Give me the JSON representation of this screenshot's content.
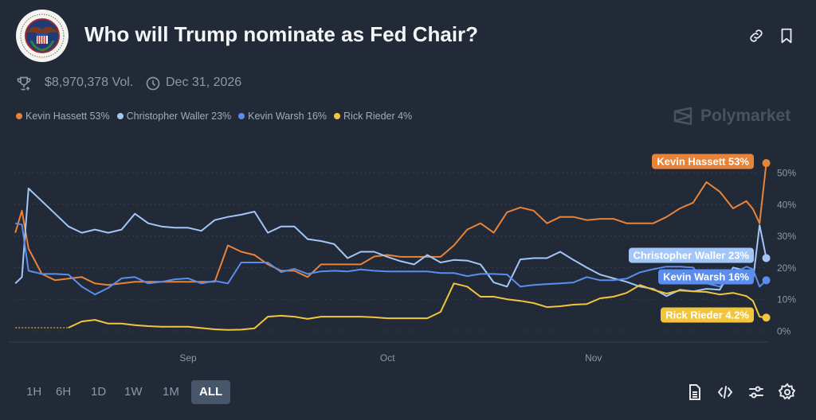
{
  "header": {
    "title": "Who will Trump nominate as Fed Chair?",
    "volume": "$8,970,378 Vol.",
    "end_date": "Dec 31, 2026",
    "icons": [
      "fed-seal",
      "trophy-icon",
      "clock-icon",
      "link-icon",
      "bookmark-icon"
    ]
  },
  "brand": "Polymarket",
  "legend": [
    {
      "label": "Kevin Hassett 53%",
      "color": "#e8833a"
    },
    {
      "label": "Christopher Waller 23%",
      "color": "#a3c6f8"
    },
    {
      "label": "Kevin Warsh 16%",
      "color": "#5b8def"
    },
    {
      "label": "Rick Rieder 4%",
      "color": "#f2c53d"
    }
  ],
  "end_labels": [
    "Kevin Hassett 53%",
    "Christopher Waller 23%",
    "Kevin Warsh 16%",
    "Rick Rieder 4.2%"
  ],
  "ranges": [
    {
      "label": "1H",
      "active": false
    },
    {
      "label": "6H",
      "active": false
    },
    {
      "label": "1D",
      "active": false
    },
    {
      "label": "1W",
      "active": false
    },
    {
      "label": "1M",
      "active": false
    },
    {
      "label": "ALL",
      "active": true
    }
  ],
  "toolbar_icons": [
    "document-icon",
    "embed-code-icon",
    "sliders-icon",
    "settings-icon"
  ],
  "chart_data": {
    "type": "line",
    "x_ticks": [
      "Sep",
      "Oct",
      "Nov"
    ],
    "y_ticks": [
      "0%",
      "10%",
      "20%",
      "30%",
      "40%",
      "50%"
    ],
    "ylim": [
      0,
      55
    ],
    "y_unit": "%",
    "grid": "horizontal dotted",
    "legend_placement": "top-left",
    "x": [
      "Aug 6",
      "Aug 7",
      "Aug 8",
      "Aug 10",
      "Aug 12",
      "Aug 14",
      "Aug 16",
      "Aug 18",
      "Aug 20",
      "Aug 22",
      "Aug 24",
      "Aug 26",
      "Aug 28",
      "Aug 30",
      "Sep 1",
      "Sep 3",
      "Sep 5",
      "Sep 7",
      "Sep 9",
      "Sep 11",
      "Sep 13",
      "Sep 15",
      "Sep 17",
      "Sep 19",
      "Sep 21",
      "Sep 23",
      "Sep 25",
      "Sep 27",
      "Sep 29",
      "Oct 1",
      "Oct 3",
      "Oct 5",
      "Oct 7",
      "Oct 9",
      "Oct 11",
      "Oct 13",
      "Oct 15",
      "Oct 17",
      "Oct 19",
      "Oct 21",
      "Oct 23",
      "Oct 25",
      "Oct 27",
      "Oct 29",
      "Oct 31",
      "Nov 2",
      "Nov 4",
      "Nov 6",
      "Nov 8",
      "Nov 10",
      "Nov 12",
      "Nov 14",
      "Nov 16",
      "Nov 18",
      "Nov 20",
      "Nov 22",
      "Nov 24",
      "Nov 25",
      "Nov 26",
      "Nov 27"
    ],
    "series": [
      {
        "name": "Kevin Hassett",
        "color": "#e8833a",
        "values": [
          31,
          38,
          26,
          18,
          16,
          16.5,
          17,
          15,
          14.5,
          15,
          15.5,
          15.5,
          15.5,
          15.5,
          15.5,
          15.5,
          15.5,
          27,
          25,
          24,
          21,
          19,
          19,
          17,
          21,
          21,
          21,
          21,
          23.5,
          24,
          23.4,
          23.4,
          23.4,
          23.4,
          27,
          32,
          34,
          31,
          37.5,
          39,
          38,
          34,
          36,
          36,
          35,
          35.4,
          35.4,
          34,
          34,
          34,
          36,
          38.7,
          40.5,
          47,
          44,
          38.7,
          41,
          38.5,
          34,
          53
        ]
      },
      {
        "name": "Christopher Waller",
        "color": "#a3c6f8",
        "values": [
          15,
          17,
          45,
          41,
          37,
          33,
          31,
          32,
          31,
          32,
          37,
          34,
          33,
          32.6,
          32.6,
          31.6,
          35,
          36,
          36.7,
          37.7,
          31,
          33,
          33,
          29,
          28.4,
          27.4,
          23,
          25,
          25,
          23.4,
          22,
          21,
          24,
          21.6,
          22.4,
          22.2,
          21,
          15.3,
          14,
          22.6,
          23,
          23,
          25,
          22.4,
          20,
          17.8,
          16.6,
          15.5,
          14,
          13.3,
          11,
          13,
          12.5,
          13.3,
          13,
          20,
          19,
          16,
          33.4,
          23
        ]
      },
      {
        "name": "Kevin Warsh",
        "color": "#5b8def",
        "values": [
          34,
          33.6,
          19,
          18,
          18,
          17.8,
          14,
          11.5,
          13.6,
          16.6,
          17,
          15,
          15.5,
          16.3,
          16.6,
          15,
          15.8,
          15,
          21.6,
          21.6,
          21.6,
          18.6,
          19.6,
          18,
          18.8,
          19,
          18.8,
          19.4,
          19,
          18.8,
          18.8,
          18.8,
          18.8,
          18.3,
          18.3,
          17.3,
          18,
          18,
          17.8,
          14,
          14.5,
          14.8,
          15,
          15.3,
          17,
          16,
          16,
          16.5,
          18.5,
          19.5,
          20.3,
          20.3,
          20,
          15,
          14,
          18,
          20.3,
          19.5,
          14,
          16
        ]
      },
      {
        "name": "Rick Rieder",
        "color": "#f2c53d",
        "dotted_until": "Aug 14",
        "values": [
          1,
          1,
          1,
          1,
          1,
          1,
          3,
          3.5,
          2.3,
          2.3,
          1.8,
          1.5,
          1.3,
          1.3,
          1.3,
          0.9,
          0.5,
          0.3,
          0.4,
          0.8,
          4.5,
          4.8,
          4.5,
          3.8,
          4.5,
          4.5,
          4.5,
          4.5,
          4.3,
          4,
          4,
          4,
          4,
          6,
          15,
          14,
          10.8,
          10.8,
          10,
          9.5,
          8.8,
          7.5,
          7.8,
          8.3,
          8.5,
          10.3,
          10.8,
          12,
          14.5,
          13,
          11.8,
          12.8,
          12.5,
          12.3,
          11.5,
          12,
          11,
          9.5,
          4.5,
          4.2
        ]
      }
    ]
  }
}
